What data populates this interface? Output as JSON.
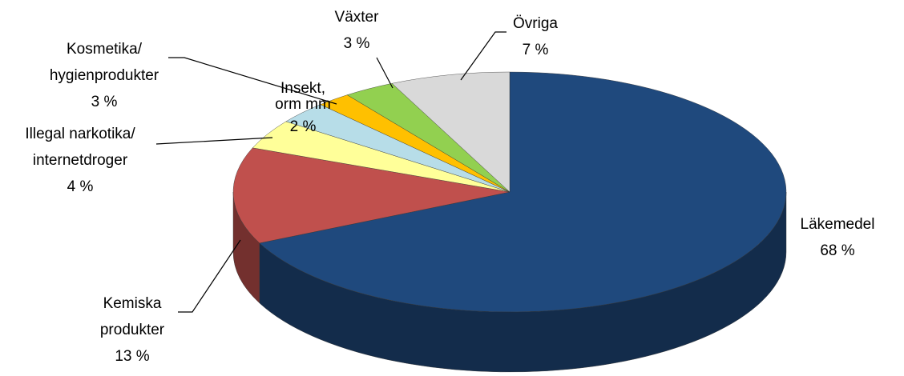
{
  "chart_data": {
    "type": "pie",
    "categories": [
      "Läkemedel",
      "Kemiska\nprodukter",
      "Illegal narkotika/\ninternetdroger",
      "Kosmetika/\nhygienprodukter",
      "Insekt,\norm mm",
      "Växter",
      "Övriga"
    ],
    "values": [
      68,
      13,
      4,
      3,
      2,
      3,
      7
    ],
    "value_labels": [
      "68 %",
      "13 %",
      "4 %",
      "3 %",
      "2 %",
      "3 %",
      "7 %"
    ],
    "colors": [
      "#1f497d",
      "#c0504d",
      "#ffff99",
      "#b7dde8",
      "#ffc000",
      "#92d050",
      "#d9d9d9"
    ]
  }
}
